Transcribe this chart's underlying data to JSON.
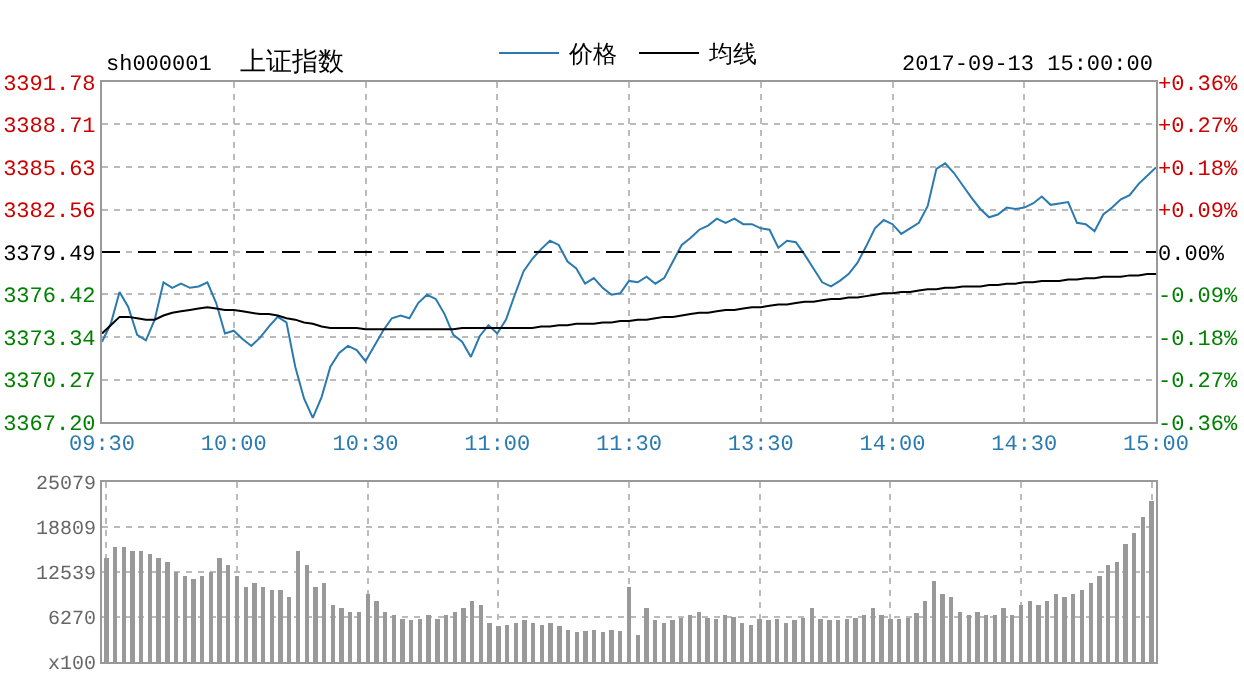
{
  "chart_data": [
    {
      "type": "line",
      "title": "上证指数",
      "annotations": [
        "sh000001",
        "2017-09-13 15:00:00"
      ],
      "legend": "top",
      "grid": true,
      "marker": "none",
      "line_style": "solid",
      "categories": [
        "09:30",
        null,
        null,
        null,
        null,
        null,
        null,
        null,
        null,
        null,
        null,
        null,
        null,
        null,
        null,
        "10:00",
        null,
        null,
        null,
        null,
        null,
        null,
        null,
        null,
        null,
        null,
        null,
        null,
        null,
        null,
        "10:30",
        null,
        null,
        null,
        null,
        null,
        null,
        null,
        null,
        null,
        null,
        null,
        null,
        null,
        null,
        "11:00",
        null,
        null,
        null,
        null,
        null,
        null,
        null,
        null,
        null,
        null,
        null,
        null,
        null,
        null,
        "11:30",
        null,
        null,
        null,
        null,
        null,
        null,
        null,
        null,
        null,
        null,
        null,
        null,
        null,
        null,
        "13:30",
        null,
        null,
        null,
        null,
        null,
        null,
        null,
        null,
        null,
        null,
        null,
        null,
        null,
        null,
        "14:00",
        null,
        null,
        null,
        null,
        null,
        null,
        null,
        null,
        null,
        null,
        null,
        null,
        null,
        null,
        "14:30",
        null,
        null,
        null,
        null,
        null,
        null,
        null,
        null,
        null,
        null,
        null,
        null,
        null,
        null,
        "15:00"
      ],
      "ylim": [
        3367.2,
        3391.78
      ],
      "yticks": [
        {
          "value": 3367.2,
          "label": "3367.20"
        },
        3370.27,
        3373.34,
        3376.42,
        3379.49,
        3382.56,
        3385.63,
        3388.71,
        3391.78
      ],
      "y2lim": [
        -0.36,
        0.36
      ],
      "y2ticks": [
        {
          "value": -0.36,
          "label": "-0.36%"
        },
        {
          "value": -0.27,
          "label": "-0.27%"
        },
        {
          "value": -0.18,
          "label": "-0.18%"
        },
        {
          "value": -0.09,
          "label": "-0.09%"
        },
        {
          "value": 0,
          "label": "0.00%"
        },
        {
          "value": 0.09,
          "label": "+0.09%"
        },
        {
          "value": 0.18,
          "label": "+0.18%"
        },
        {
          "value": 0.27,
          "label": "+0.27%"
        },
        {
          "value": 0.36,
          "label": "+0.36%"
        }
      ],
      "ref_lines": [
        {
          "axis": "y",
          "value": 3379.49,
          "color": "#000000",
          "line_style": "dashed"
        }
      ],
      "series": [
        {
          "name": "价格",
          "color": "#2a7ab0",
          "values": [
            3373.0,
            3374.3,
            3376.6,
            3375.5,
            3373.5,
            3373.1,
            3374.6,
            3377.3,
            3376.9,
            3377.2,
            3376.9,
            3377.0,
            3377.3,
            3375.8,
            3373.6,
            3373.8,
            3373.2,
            3372.7,
            3373.3,
            3374.1,
            3374.8,
            3374.4,
            3371.2,
            3368.9,
            3367.5,
            3369.0,
            3371.2,
            3372.2,
            3372.7,
            3372.4,
            3371.6,
            3372.7,
            3373.8,
            3374.7,
            3374.9,
            3374.7,
            3375.8,
            3376.4,
            3376.1,
            3375.0,
            3373.5,
            3373.0,
            3371.9,
            3373.4,
            3374.2,
            3373.6,
            3374.6,
            3376.4,
            3378.1,
            3379.0,
            3379.7,
            3380.3,
            3380.0,
            3378.8,
            3378.3,
            3377.2,
            3377.6,
            3376.9,
            3376.4,
            3376.5,
            3377.4,
            3377.3,
            3377.7,
            3377.2,
            3377.6,
            3378.8,
            3380.0,
            3380.5,
            3381.1,
            3381.4,
            3381.9,
            3381.6,
            3381.9,
            3381.5,
            3381.5,
            3381.2,
            3381.1,
            3379.8,
            3380.3,
            3380.2,
            3379.3,
            3378.3,
            3377.3,
            3377.0,
            3377.4,
            3377.9,
            3378.7,
            3379.9,
            3381.2,
            3381.8,
            3381.5,
            3380.8,
            3381.2,
            3381.6,
            3382.8,
            3385.5,
            3385.9,
            3385.2,
            3384.3,
            3383.4,
            3382.6,
            3382.0,
            3382.2,
            3382.7,
            3382.6,
            3382.7,
            3383.0,
            3383.5,
            3382.9,
            3383.0,
            3383.1,
            3381.6,
            3381.5,
            3381.0,
            3382.2,
            3382.7,
            3383.3,
            3383.6,
            3384.4,
            3385.0,
            3385.6
          ]
        },
        {
          "name": "均线",
          "color": "#000000",
          "values": [
            3373.6,
            3374.2,
            3374.8,
            3374.8,
            3374.7,
            3374.6,
            3374.6,
            3374.9,
            3375.1,
            3375.2,
            3375.3,
            3375.4,
            3375.5,
            3375.4,
            3375.3,
            3375.3,
            3375.2,
            3375.1,
            3375.0,
            3375.0,
            3374.9,
            3374.7,
            3374.6,
            3374.4,
            3374.3,
            3374.1,
            3374.0,
            3374.0,
            3374.0,
            3374.0,
            3373.9,
            3373.9,
            3373.9,
            3373.9,
            3373.9,
            3373.9,
            3373.9,
            3373.9,
            3373.9,
            3373.9,
            3373.9,
            3374.0,
            3374.0,
            3374.0,
            3374.0,
            3374.0,
            3374.0,
            3374.0,
            3374.0,
            3374.0,
            3374.1,
            3374.1,
            3374.2,
            3374.2,
            3374.3,
            3374.3,
            3374.3,
            3374.4,
            3374.4,
            3374.5,
            3374.5,
            3374.6,
            3374.6,
            3374.7,
            3374.8,
            3374.8,
            3374.9,
            3375.0,
            3375.1,
            3375.1,
            3375.2,
            3375.3,
            3375.3,
            3375.4,
            3375.5,
            3375.5,
            3375.6,
            3375.7,
            3375.7,
            3375.8,
            3375.9,
            3375.9,
            3376.0,
            3376.1,
            3376.1,
            3376.2,
            3376.2,
            3376.3,
            3376.4,
            3376.5,
            3376.5,
            3376.6,
            3376.6,
            3376.7,
            3376.8,
            3376.8,
            3376.9,
            3376.9,
            3377.0,
            3377.0,
            3377.0,
            3377.1,
            3377.1,
            3377.2,
            3377.2,
            3377.3,
            3377.3,
            3377.4,
            3377.4,
            3377.4,
            3377.5,
            3377.5,
            3377.6,
            3377.6,
            3377.7,
            3377.7,
            3377.7,
            3377.8,
            3377.8,
            3377.9,
            3377.9
          ]
        }
      ]
    },
    {
      "type": "bar",
      "color": "#999999",
      "grid": true,
      "tick_labels": "y",
      "ylim": [
        0,
        25079
      ],
      "yticks": [
        {
          "value": 0,
          "label": "x100"
        },
        6270,
        12539,
        18809,
        25079
      ],
      "categories": [
        null,
        null,
        null,
        null,
        null,
        null,
        null,
        null,
        null,
        null,
        null,
        null,
        null,
        null,
        null,
        null,
        null,
        null,
        null,
        null,
        null,
        null,
        null,
        null,
        null,
        null,
        null,
        null,
        null,
        null,
        null,
        null,
        null,
        null,
        null,
        null,
        null,
        null,
        null,
        null,
        null,
        null,
        null,
        null,
        null,
        null,
        null,
        null,
        null,
        null,
        null,
        null,
        null,
        null,
        null,
        null,
        null,
        null,
        null,
        null,
        null,
        null,
        null,
        null,
        null,
        null,
        null,
        null,
        null,
        null,
        null,
        null,
        null,
        null,
        null,
        null,
        null,
        null,
        null,
        null,
        null,
        null,
        null,
        null,
        null,
        null,
        null,
        null,
        null,
        null,
        null,
        null,
        null,
        null,
        null,
        null,
        null,
        null,
        null,
        null,
        null,
        null,
        null,
        null,
        null,
        null,
        null,
        null,
        null,
        null,
        null,
        null,
        null,
        null,
        null,
        null,
        null,
        null,
        null,
        null,
        null
      ],
      "values": [
        14500,
        16000,
        16000,
        15500,
        15500,
        15000,
        14500,
        14000,
        12500,
        12000,
        11500,
        12000,
        12500,
        14500,
        13500,
        12000,
        10500,
        11000,
        10500,
        10000,
        10000,
        9000,
        15500,
        13500,
        10500,
        11000,
        8000,
        7500,
        7000,
        7000,
        9500,
        8500,
        7000,
        6500,
        6000,
        5800,
        6000,
        6500,
        6000,
        6500,
        7000,
        7500,
        8500,
        8000,
        5500,
        5000,
        5200,
        5500,
        5800,
        5500,
        5200,
        5500,
        5000,
        4500,
        4200,
        4300,
        4500,
        4200,
        4500,
        4300,
        10500,
        3800,
        7500,
        5800,
        5500,
        5800,
        6200,
        6500,
        7000,
        6200,
        6000,
        6500,
        6300,
        5500,
        5200,
        6000,
        5800,
        6000,
        5500,
        5800,
        6200,
        7500,
        6000,
        5800,
        5800,
        6000,
        6200,
        6500,
        7500,
        6500,
        6000,
        6000,
        6200,
        6800,
        8500,
        11300,
        9500,
        9000,
        7000,
        6500,
        7000,
        6500,
        6500,
        7500,
        6500,
        8000,
        8500,
        8000,
        8500,
        9500,
        9000,
        9500,
        10000,
        11000,
        12000,
        13500,
        14000,
        16500,
        18000,
        20200,
        22500
      ]
    }
  ]
}
